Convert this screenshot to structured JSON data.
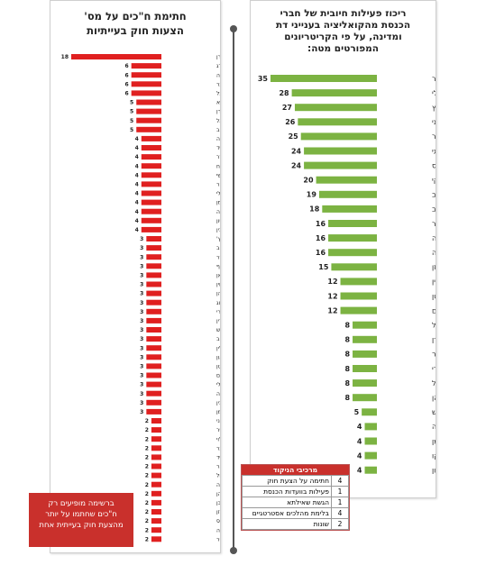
{
  "left_title": [
    "חתימת ח\"כים על מס'",
    "הצעות חוק בעייתיות"
  ],
  "right_title": [
    "ריכוז פעילות חיובית של חברי",
    "הכנסת מהקואליציה בענייני דת",
    "ומדינה, על פי הקריטריונים",
    "המפורטים מטה:"
  ],
  "note": [
    "ברשימה מופיעים רק",
    "ח\"כים שחתמו על יותר",
    "מהצעת חוק בעייתית אחת"
  ],
  "legend": {
    "header": "מרכיבי הניקוד",
    "rows": [
      {
        "n": "4",
        "label": "חתימה על הצעת חוק"
      },
      {
        "n": "1",
        "label": "פעילות בוועדות הכנסת"
      },
      {
        "n": "1",
        "label": "הגשת שאילתא"
      },
      {
        "n": "4",
        "label": "בלימת מהלכים אסטרטגיים"
      },
      {
        "n": "2",
        "label": "שונות"
      }
    ]
  },
  "colors": {
    "left_bar": "#e02020",
    "right_bar": "#7cb342",
    "note_bg": "#c9302c"
  },
  "chart_data": [
    {
      "type": "bar",
      "orientation": "horizontal",
      "title": "חתימת ח\"כים על מס' הצעות חוק בעייתיות",
      "categories": [
        "אלעזר שטרן",
        "תמר זנדברג",
        "קסניה סבטלובה",
        "סופה לנדבר",
        "איתן כבל",
        "עליזה לביא",
        "מיכל בירן",
        "ינון מגל",
        "יואל רזבוזוב",
        "רחל עזריה",
        "רויטל סויד",
        "קארין אלהרר",
        "עפר שלח",
        "נחמן שי",
        "נאוה בוקר",
        "מרב מיכאלי",
        "יעל גרמן",
        "יוסי יונה",
        "יואל חסון",
        "דב חנין",
        "שלי יחימוביץ'",
        "רוברט אילטוב",
        "עודד פורר",
        "עבדאללה אבו מערוף",
        "עאידה תומא סלימאן",
        "מיכל רוזין",
        "מאיר כהן",
        "יצחק הרצוג",
        "יעקב פרי",
        "יוסף ג'בארין",
        "יואב קיש",
        "טלי פלוסקוב",
        "חיים ילין",
        "זהבה גלאון",
        "דוד ביטן",
        "דוד אמסלם",
        "איציק שמולי",
        "איינון עודה",
        "איילת נחמיאס ורבין",
        "אביגדור ליברמן",
        "ציפי לבני",
        "סתיו שפיר",
        "מיקי לוי",
        "יחיאל חיליק בר",
        "יאיר לפיד",
        "חמד עמאר",
        "זהיר בהלול",
        "אמיר אוחנה",
        "אלי כהן",
        "איל בן-ראובן",
        "אורן אסף חזן",
        "אורלי לוי-אבקסיס",
        "אברהם נגוסה",
        "אברהם דיכטר"
      ],
      "values": [
        18,
        6,
        6,
        6,
        6,
        5,
        5,
        5,
        5,
        4,
        4,
        4,
        4,
        4,
        4,
        4,
        4,
        4,
        4,
        4,
        3,
        3,
        3,
        3,
        3,
        3,
        3,
        3,
        3,
        3,
        3,
        3,
        3,
        3,
        3,
        3,
        3,
        3,
        3,
        3,
        2,
        2,
        2,
        2,
        2,
        2,
        2,
        2,
        2,
        2,
        2,
        2,
        2,
        2
      ]
    },
    {
      "type": "bar",
      "orientation": "horizontal",
      "title": "ריכוז פעילות חיובית של חברי הכנסת מהקואליציה בענייני דת ומדינה, על פי הקריטריונים המפורטים מטה:",
      "categories": [
        "יואב בן-צור",
        "שולי מועלם-רפאלי",
        "בצלאל סמוטריץ",
        "משה גפני",
        "מכלוף מיקי זוהר",
        "יעקב מרגי",
        "מנחם אליעזר מוזס",
        "ניסן סלומינסקי",
        "מרדכי יוגב",
        "אורי מקלב",
        "ישראל אייכלר",
        "יגאל גואטה",
        "אברהם נגוסה",
        "אורן אסף חזן",
        "יצחק וקנין",
        "דוד ביטן",
        "דוד אמסלם",
        "שרן השכל",
        "נורית קורן",
        "נאוה בוקר",
        "מירב בן-ארי",
        "ינון מגל",
        "אלי כהן",
        "יואב קיש",
        "רחל עזריה",
        "רועי פולקמן",
        "ענת ברקו",
        "יפעת שאשא ביטון"
      ],
      "values": [
        35,
        28,
        27,
        26,
        25,
        24,
        24,
        20,
        19,
        18,
        16,
        16,
        16,
        15,
        12,
        12,
        12,
        8,
        8,
        8,
        8,
        8,
        8,
        5,
        4,
        4,
        4,
        4
      ]
    }
  ]
}
